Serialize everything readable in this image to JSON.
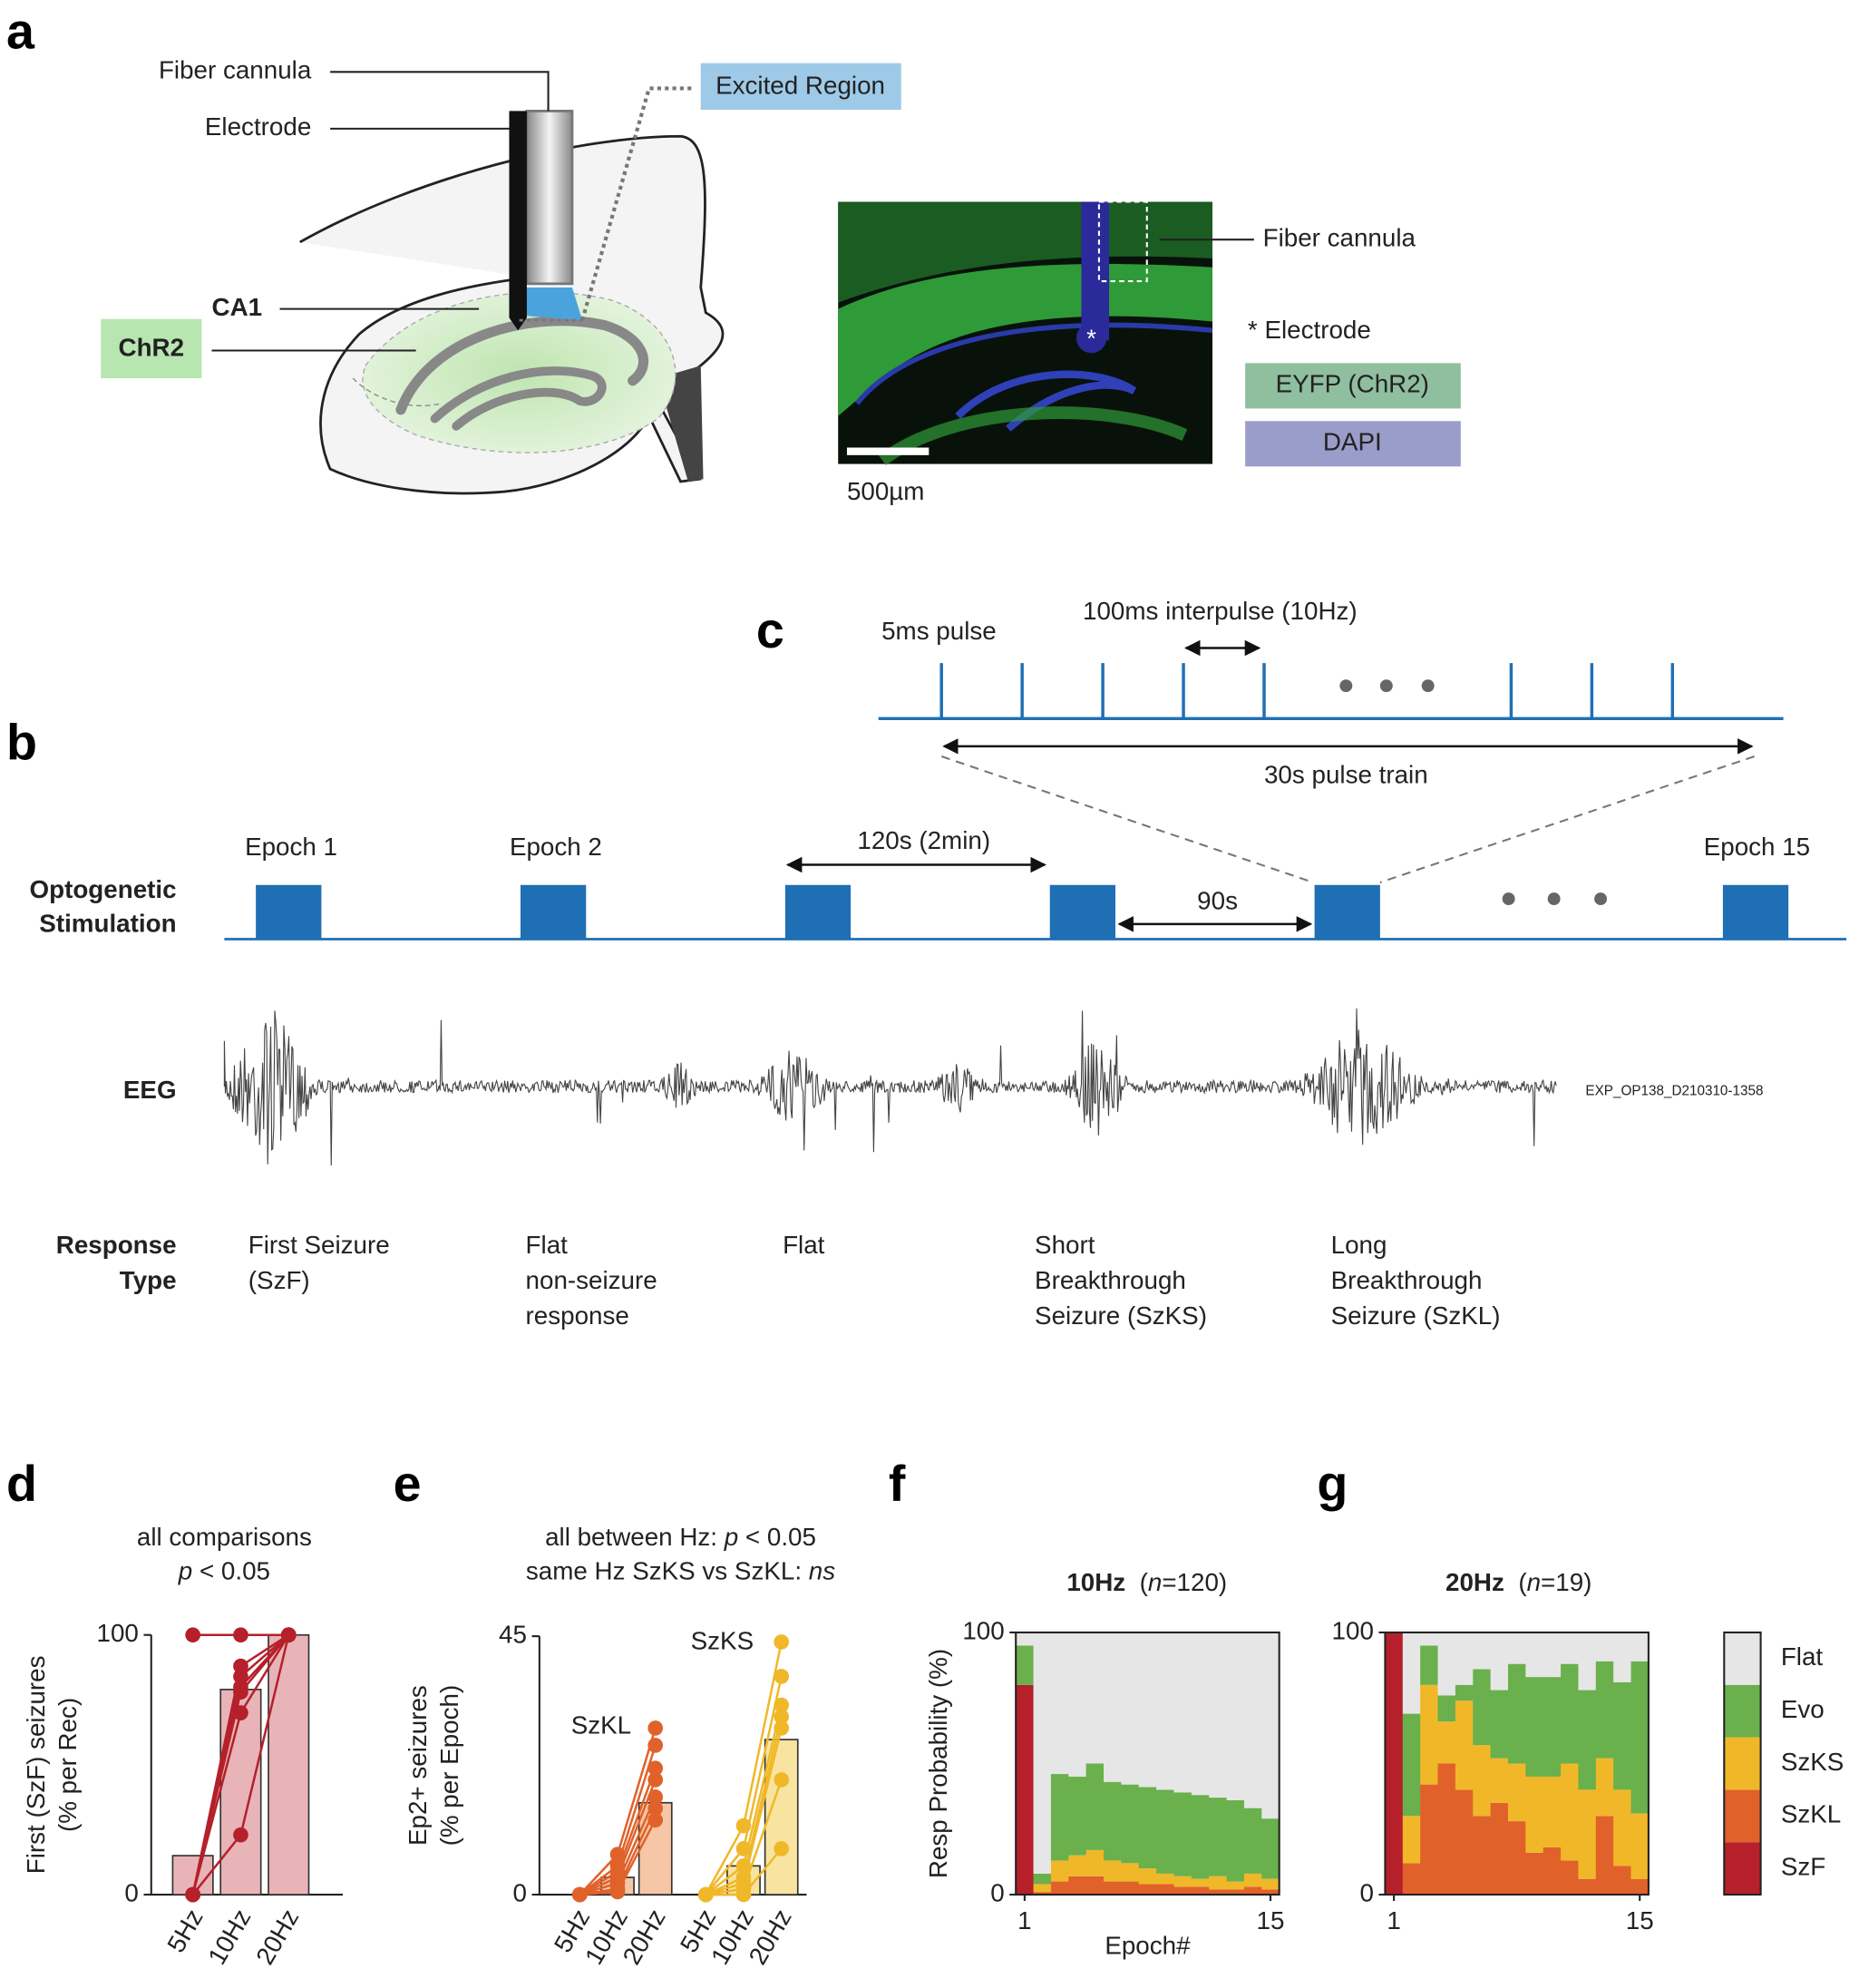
{
  "panel_labels": [
    "a",
    "b",
    "c",
    "d",
    "e",
    "f",
    "g"
  ],
  "panel_a": {
    "fiber_cannula": "Fiber cannula",
    "electrode": "Electrode",
    "excited_region": "Excited Region",
    "ca1": "CA1",
    "chr2": "ChR2",
    "micrograph": {
      "fiber_cannula": "Fiber cannula",
      "star": "*",
      "electrode": "* Electrode",
      "eyfp": "EYFP (ChR2)",
      "dapi": "DAPI",
      "scale_bar": "500µm"
    }
  },
  "panel_b": {
    "stimulation_label": [
      "Optogenetic",
      "Stimulation"
    ],
    "eeg_label": "EEG",
    "response_label": [
      "Response",
      "Type"
    ],
    "epochs": [
      "Epoch 1",
      "Epoch 2",
      "Epoch 15"
    ],
    "interval_long": "120s (2min)",
    "interval_short": "90s",
    "recording_id": "EXP_OP138_D210310-1358",
    "responses": [
      [
        "First Seizure",
        "(SzF)"
      ],
      [
        "Flat",
        "non-seizure",
        "response"
      ],
      [
        "Flat"
      ],
      [
        "Short",
        "Breakthrough",
        "Seizure (SzKS)"
      ],
      [
        "Long",
        "Breakthrough",
        "Seizure (SzKL)"
      ]
    ]
  },
  "panel_c": {
    "pulse": "5ms pulse",
    "interpulse": "100ms interpulse (10Hz)",
    "train": "30s pulse train"
  },
  "chart_data": [
    {
      "type": "bar",
      "title": [
        [
          {
            "text": "all comparisons"
          }
        ],
        [
          {
            "text": "p",
            "italic": true
          },
          {
            "text": " < 0.05"
          }
        ]
      ],
      "y_label": [
        "First (SzF) seizures",
        "(% per Rec)"
      ],
      "categories": [
        "5Hz",
        "10Hz",
        "20Hz"
      ],
      "ylim": [
        0,
        100
      ],
      "yticks": [
        0,
        100
      ],
      "groups": [
        {
          "values": [
            15,
            79,
            100
          ],
          "bar_color": "#e8b4b8",
          "color": "#b5202a",
          "points": [
            [
              100,
              100,
              100
            ],
            [
              0,
              88,
              100
            ],
            [
              0,
              84,
              100
            ],
            [
              0,
              80,
              100
            ],
            [
              0,
              78,
              100
            ],
            [
              0,
              70,
              100
            ],
            [
              0,
              23,
              100
            ]
          ]
        }
      ]
    },
    {
      "type": "bar",
      "title": [
        [
          {
            "text": "all between Hz: "
          },
          {
            "text": "p",
            "italic": true
          },
          {
            "text": " < 0.05"
          }
        ],
        [
          {
            "text": "same Hz SzKS vs SzKL: "
          },
          {
            "text": "ns",
            "italic": true
          }
        ]
      ],
      "y_label": [
        "Ep2+ seizures",
        "(% per Epoch)"
      ],
      "categories": [
        "5Hz",
        "10Hz",
        "20Hz"
      ],
      "ylim": [
        0,
        45
      ],
      "yticks": [
        0,
        45
      ],
      "groups": [
        {
          "name": "SzKL",
          "values": [
            0,
            3,
            16
          ],
          "bar_color": "#f6c6a6",
          "color": "#e0622a",
          "points": [
            [
              0,
              7,
              29
            ],
            [
              0,
              5,
              26
            ],
            [
              0,
              4,
              22
            ],
            [
              0,
              3,
              20
            ],
            [
              0,
              2,
              17
            ],
            [
              0,
              1,
              15
            ],
            [
              0,
              0.5,
              13
            ]
          ]
        },
        {
          "name": "SzKS",
          "values": [
            0,
            5,
            27
          ],
          "bar_color": "#f8e4a0",
          "color": "#f0b828",
          "points": [
            [
              0,
              12,
              44
            ],
            [
              0,
              8,
              38
            ],
            [
              0,
              5,
              33
            ],
            [
              0,
              3,
              31
            ],
            [
              0,
              2,
              29
            ],
            [
              0,
              1,
              20
            ],
            [
              0,
              0,
              8
            ]
          ]
        }
      ]
    },
    {
      "type": "stacked",
      "title": [
        [
          {
            "text": "10Hz",
            "bold": true
          },
          {
            "text": "  ("
          },
          {
            "text": "n",
            "italic": true
          },
          {
            "text": "=120)"
          }
        ]
      ],
      "y_label": "Resp Probability (%)",
      "x_label": "Epoch#",
      "x": [
        1,
        2,
        3,
        4,
        5,
        6,
        7,
        8,
        9,
        10,
        11,
        12,
        13,
        14,
        15
      ],
      "xlim": [
        0.5,
        15.5
      ],
      "xticks": [
        1,
        15
      ],
      "ylim": [
        0,
        100
      ],
      "yticks": [
        0,
        100
      ],
      "series": [
        {
          "color": "#b5202a",
          "values": [
            80,
            0,
            0,
            0,
            0,
            0,
            0,
            0,
            0,
            0,
            0,
            0,
            0,
            0,
            0
          ]
        },
        {
          "color": "#e0622a",
          "values": [
            0,
            1,
            5,
            7,
            7,
            5,
            5,
            4,
            4,
            3,
            3,
            2,
            2,
            3,
            2
          ]
        },
        {
          "color": "#f0b828",
          "values": [
            0,
            3,
            8,
            8,
            10,
            8,
            7,
            6,
            4,
            4,
            3,
            5,
            3,
            5,
            4
          ]
        },
        {
          "color": "#6ab04c",
          "values": [
            15,
            4,
            33,
            30,
            33,
            30,
            30,
            31,
            32,
            32,
            32,
            30,
            31,
            25,
            23
          ]
        },
        {
          "color": "#e6e6e6",
          "values": [
            5,
            92,
            54,
            55,
            50,
            57,
            58,
            59,
            60,
            61,
            62,
            63,
            64,
            67,
            71
          ]
        }
      ]
    },
    {
      "type": "stacked",
      "title": [
        [
          {
            "text": "20Hz",
            "bold": true
          },
          {
            "text": "  ("
          },
          {
            "text": "n",
            "italic": true
          },
          {
            "text": "=19)"
          }
        ]
      ],
      "x": [
        1,
        2,
        3,
        4,
        5,
        6,
        7,
        8,
        9,
        10,
        11,
        12,
        13,
        14,
        15
      ],
      "xlim": [
        0.5,
        15.5
      ],
      "xticks": [
        1,
        15
      ],
      "ylim": [
        0,
        100
      ],
      "yticks": [
        0,
        100
      ],
      "legend": "right",
      "series": [
        {
          "name": "SzF",
          "color": "#b5202a",
          "values": [
            100,
            0,
            0,
            0,
            0,
            0,
            0,
            0,
            0,
            0,
            0,
            0,
            0,
            0,
            0
          ]
        },
        {
          "name": "SzKL",
          "color": "#e0622a",
          "values": [
            0,
            12,
            42,
            50,
            40,
            30,
            35,
            28,
            16,
            18,
            13,
            6,
            30,
            11,
            6
          ]
        },
        {
          "name": "SzKS",
          "color": "#f0b828",
          "values": [
            0,
            18,
            38,
            16,
            34,
            27,
            17,
            22,
            29,
            27,
            37,
            34,
            22,
            29,
            25
          ]
        },
        {
          "name": "Evo",
          "color": "#6ab04c",
          "values": [
            0,
            39,
            15,
            10,
            6,
            29,
            26,
            38,
            38,
            38,
            38,
            38,
            37,
            41,
            58
          ]
        },
        {
          "name": "Flat",
          "color": "#e6e6e6",
          "values": [
            0,
            31,
            5,
            24,
            20,
            14,
            22,
            12,
            17,
            17,
            12,
            22,
            11,
            19,
            11
          ]
        }
      ]
    }
  ]
}
